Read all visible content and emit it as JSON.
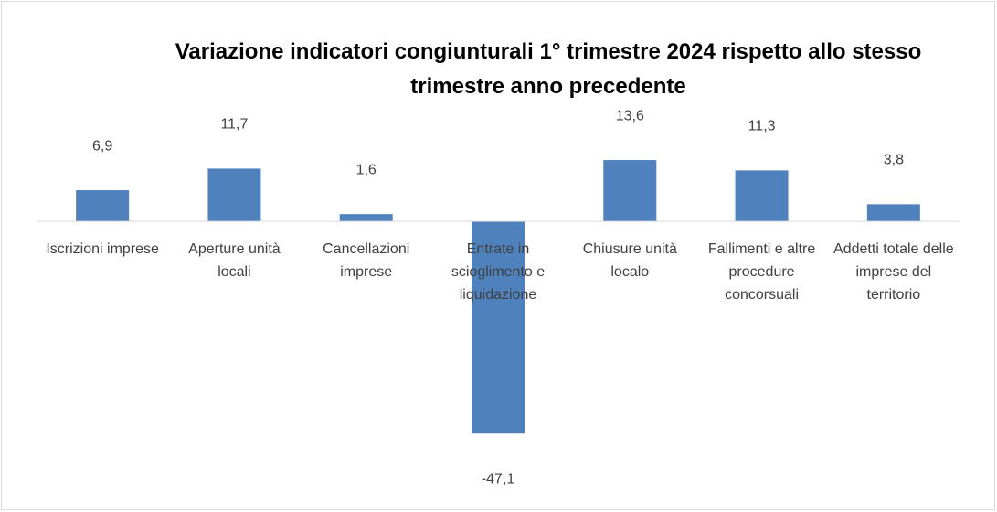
{
  "chart_data": {
    "type": "bar",
    "title": "Variazione indicatori congiunturali 1° trimestre 2024 rispetto allo stesso trimestre anno precedente",
    "categories": [
      "Iscrizioni imprese",
      "Aperture unità locali",
      "Cancellazioni imprese",
      "Entrate in scioglimento e liquidazione",
      "Chiusure unità localo",
      "Fallimenti e altre procedure concorsuali",
      "Addetti totale delle imprese del territorio"
    ],
    "values": [
      6.9,
      11.7,
      1.6,
      -47.1,
      13.6,
      11.3,
      3.8
    ],
    "value_labels": [
      "6,9",
      "11,7",
      "1,6",
      "-47,1",
      "13,6",
      "11,3",
      "3,8"
    ],
    "color": "#4f81bd",
    "ylim": [
      -50,
      20
    ]
  }
}
